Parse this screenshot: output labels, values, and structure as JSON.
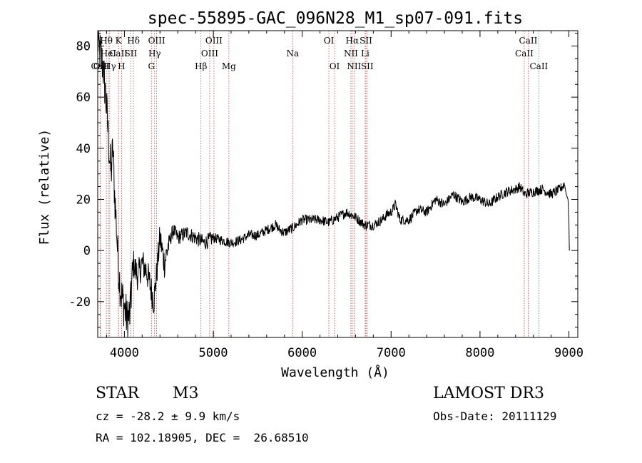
{
  "chart_data": {
    "type": "line",
    "title": "spec-55895-GAC_096N28_M1_sp07-091.fits",
    "xlabel": "Wavelength (Å)",
    "ylabel": "Flux (relative)",
    "xlim": [
      3700,
      9100
    ],
    "ylim": [
      -34,
      86
    ],
    "xticks": [
      4000,
      5000,
      6000,
      7000,
      8000,
      9000
    ],
    "yticks": [
      -20,
      0,
      20,
      40,
      60,
      80
    ],
    "grid": false,
    "series": [
      {
        "line_color": "#000000",
        "x": [
          3700,
          3760,
          3790,
          3810,
          3830,
          3850,
          3870,
          3890,
          3910,
          3930,
          3950,
          3970,
          4000,
          4030,
          4060,
          4080,
          4100,
          4150,
          4200,
          4250,
          4300,
          4330,
          4360,
          4400,
          4450,
          4500,
          4550,
          4600,
          4700,
          4800,
          4900,
          5000,
          5100,
          5200,
          5300,
          5400,
          5500,
          5600,
          5700,
          5750,
          5800,
          5900,
          6000,
          6100,
          6200,
          6300,
          6400,
          6500,
          6550,
          6600,
          6700,
          6800,
          6900,
          6950,
          7000,
          7050,
          7100,
          7200,
          7300,
          7400,
          7500,
          7600,
          7700,
          7800,
          7900,
          8000,
          8100,
          8200,
          8300,
          8400,
          8450,
          8500,
          8600,
          8700,
          8800,
          8900,
          8950,
          8970,
          8990,
          9000,
          9005
        ],
        "y": [
          82,
          72,
          60,
          50,
          38,
          30,
          40,
          22,
          10,
          -5,
          -13,
          -18,
          -22,
          -27,
          -25,
          -15,
          -5,
          -10,
          -5,
          -8,
          -15,
          -20,
          -10,
          5,
          -5,
          3,
          8,
          5,
          7,
          5,
          3,
          5,
          4,
          3,
          4,
          6,
          6,
          8,
          10,
          8,
          7,
          9,
          12,
          12,
          12,
          11,
          13,
          15,
          14,
          13,
          10,
          10,
          12,
          14,
          15,
          18,
          12,
          12,
          16,
          15,
          20,
          18,
          22,
          19,
          21,
          20,
          18,
          21,
          23,
          24,
          25,
          22,
          23,
          24,
          22,
          24,
          26,
          22,
          20,
          12,
          0
        ]
      }
    ],
    "spectral_lines": [
      {
        "name": "Hθ",
        "x": 3797,
        "row": 1
      },
      {
        "name": "OII",
        "x": 3727,
        "row": 3
      },
      {
        "name": "CaII",
        "x": 3727,
        "row": 3
      },
      {
        "name": "HeI",
        "x": 3820,
        "row": 2
      },
      {
        "name": "Hγ",
        "x": 3835,
        "row": 3
      },
      {
        "name": "K",
        "x": 3934,
        "row": 1
      },
      {
        "name": "CaII",
        "x": 3934,
        "row": 2
      },
      {
        "name": "H",
        "x": 3968,
        "row": 3
      },
      {
        "name": "Hδ",
        "x": 4102,
        "row": 1
      },
      {
        "name": "SII",
        "x": 4072,
        "row": 2
      },
      {
        "name": "OIII",
        "x": 4363,
        "row": 1
      },
      {
        "name": "Hγ",
        "x": 4340,
        "row": 2
      },
      {
        "name": "G",
        "x": 4304,
        "row": 3
      },
      {
        "name": "Hβ",
        "x": 4861,
        "row": 3
      },
      {
        "name": "OIII",
        "x": 5007,
        "row": 1
      },
      {
        "name": "OIII",
        "x": 4959,
        "row": 2
      },
      {
        "name": "Mg",
        "x": 5175,
        "row": 3
      },
      {
        "name": "Na",
        "x": 5893,
        "row": 2
      },
      {
        "name": "OI",
        "x": 6300,
        "row": 1
      },
      {
        "name": "OI",
        "x": 6364,
        "row": 3
      },
      {
        "name": "Hα",
        "x": 6563,
        "row": 1
      },
      {
        "name": "NII",
        "x": 6548,
        "row": 2
      },
      {
        "name": "NII",
        "x": 6583,
        "row": 3
      },
      {
        "name": "SII",
        "x": 6717,
        "row": 1
      },
      {
        "name": "Li",
        "x": 6708,
        "row": 2
      },
      {
        "name": "SII",
        "x": 6731,
        "row": 3
      },
      {
        "name": "CaII",
        "x": 8542,
        "row": 1
      },
      {
        "name": "CaII",
        "x": 8498,
        "row": 2
      },
      {
        "name": "CaII",
        "x": 8662,
        "row": 3
      }
    ]
  },
  "info": {
    "object_class": "STAR",
    "subclass": "M3",
    "survey": "LAMOST DR3",
    "redshift": "cz = -28.2 ± 9.9 km/s",
    "obs_date": "Obs-Date: 20111129",
    "coords": "RA = 102.18905, DEC =  26.68510"
  },
  "colors": {
    "line_marker": "#c04040",
    "spectrum": "#000000"
  }
}
